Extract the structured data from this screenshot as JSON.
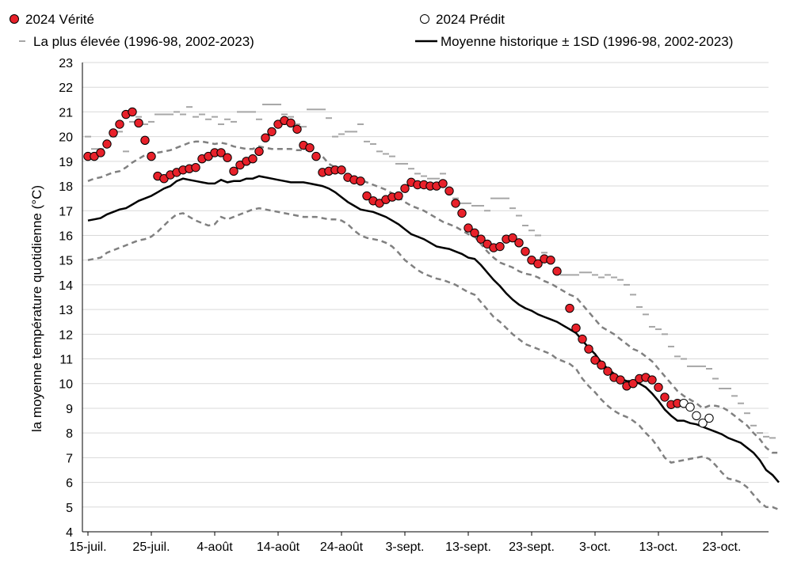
{
  "chart_data": {
    "type": "line",
    "xlabel": "",
    "ylabel": "la moyenne température quotidienne (°C)",
    "ylim": [
      4,
      23
    ],
    "yticks": [
      4,
      5,
      6,
      7,
      8,
      9,
      10,
      11,
      12,
      13,
      14,
      15,
      16,
      17,
      18,
      19,
      20,
      21,
      22,
      23
    ],
    "xrange": [
      "2024-07-15",
      "2024-10-31"
    ],
    "xticks": [
      {
        "date": "2024-07-15",
        "label": "15-juil."
      },
      {
        "date": "2024-07-25",
        "label": "25-juil."
      },
      {
        "date": "2024-08-04",
        "label": "4-août"
      },
      {
        "date": "2024-08-14",
        "label": "14-août"
      },
      {
        "date": "2024-08-24",
        "label": "24-août"
      },
      {
        "date": "2024-09-03",
        "label": "3-sept."
      },
      {
        "date": "2024-09-13",
        "label": "13-sept."
      },
      {
        "date": "2024-09-23",
        "label": "23-sept."
      },
      {
        "date": "2024-10-03",
        "label": "3-oct."
      },
      {
        "date": "2024-10-13",
        "label": "13-oct."
      },
      {
        "date": "2024-10-23",
        "label": "23-oct."
      }
    ],
    "grid": "horizontal",
    "legend": [
      {
        "label": "2024 Vérité",
        "marker": "filled-circle",
        "color": "#e8212a",
        "position": "top-left"
      },
      {
        "label": "2024 Prédit",
        "marker": "open-circle",
        "color": "#ffffff",
        "position": "top-right"
      },
      {
        "label": "La plus élevée (1996-98, 2002-2023)",
        "marker": "dash",
        "color": "#a6a6a6",
        "position": "top-left"
      },
      {
        "label": "Moyenne historique ± 1SD (1996-98, 2002-2023)",
        "marker": "line",
        "color": "#000000",
        "position": "top-right"
      }
    ],
    "series": [
      {
        "name": "2024 Vérité",
        "style": "filled-circle",
        "color": "#e8212a",
        "x_start": "2024-07-15",
        "values": [
          19.2,
          19.2,
          19.35,
          19.7,
          20.15,
          20.5,
          20.9,
          21.0,
          20.55,
          19.85,
          19.2,
          18.4,
          18.3,
          18.45,
          18.55,
          18.65,
          18.7,
          18.75,
          19.1,
          19.2,
          19.35,
          19.35,
          19.15,
          18.6,
          18.85,
          19.0,
          19.1,
          19.4,
          19.95,
          20.2,
          20.5,
          20.65,
          20.55,
          20.3,
          19.65,
          19.55,
          19.2,
          18.55,
          18.6,
          18.65,
          18.65,
          18.35,
          18.25,
          18.2,
          17.6,
          17.4,
          17.3,
          17.45,
          17.55,
          17.6,
          17.9,
          18.15,
          18.05,
          18.05,
          18.0,
          18.0,
          18.1,
          17.8,
          17.3,
          16.9,
          16.3,
          16.1,
          15.85,
          15.65,
          15.5,
          15.55,
          15.85,
          15.9,
          15.7,
          15.35,
          15.0,
          14.85,
          15.05,
          15.0,
          14.55,
          null,
          13.05,
          12.25,
          11.8,
          11.4,
          10.95,
          10.75,
          10.5,
          10.25,
          10.15,
          9.9,
          10.0,
          10.2,
          10.25,
          10.15,
          9.85,
          9.45,
          9.15,
          9.2
        ]
      },
      {
        "name": "2024 Prédit",
        "style": "open-circle",
        "color": "#ffffff",
        "x_start": "2024-10-17",
        "values": [
          9.2,
          9.05,
          8.7,
          8.4,
          8.6
        ]
      },
      {
        "name": "La plus élevée (1996-98, 2002-2023)",
        "style": "dash",
        "color": "#a6a6a6",
        "x_start": "2024-07-15",
        "values": [
          20.0,
          19.5,
          19.5,
          19.6,
          20.0,
          20.2,
          19.4,
          20.6,
          20.8,
          20.5,
          20.6,
          20.9,
          20.9,
          20.9,
          21.0,
          20.9,
          21.2,
          20.8,
          20.9,
          20.7,
          20.8,
          20.5,
          20.7,
          20.6,
          21.0,
          21.0,
          21.0,
          20.7,
          21.3,
          21.3,
          21.3,
          20.9,
          20.8,
          20.5,
          20.4,
          21.1,
          21.1,
          21.1,
          20.75,
          20.0,
          20.1,
          20.2,
          20.2,
          20.5,
          19.8,
          19.7,
          19.4,
          19.3,
          19.2,
          18.9,
          18.9,
          18.7,
          18.5,
          18.4,
          18.3,
          18.3,
          18.5,
          17.8,
          17.5,
          17.3,
          17.3,
          17.2,
          17.2,
          17.0,
          17.5,
          17.5,
          17.5,
          17.1,
          16.8,
          16.4,
          16.2,
          16.0,
          15.3,
          15.0,
          14.6,
          14.4,
          14.4,
          14.4,
          14.5,
          14.5,
          14.4,
          14.3,
          14.4,
          14.3,
          14.2,
          14.0,
          13.6,
          13.1,
          12.8,
          12.3,
          12.2,
          12.0,
          11.5,
          11.1,
          11.0,
          10.7,
          10.7,
          10.7,
          10.6,
          10.2,
          9.8,
          9.8,
          9.5,
          9.2,
          8.8,
          8.3,
          8.0,
          7.85,
          7.8
        ]
      },
      {
        "name": "Moyenne historique ± 1SD (1996-98, 2002-2023)",
        "style": "line",
        "color": "#000000",
        "x_start": "2024-07-15",
        "values": [
          16.6,
          16.65,
          16.7,
          16.85,
          16.95,
          17.05,
          17.1,
          17.25,
          17.4,
          17.5,
          17.6,
          17.75,
          17.9,
          18.0,
          18.2,
          18.3,
          18.25,
          18.2,
          18.15,
          18.1,
          18.1,
          18.25,
          18.15,
          18.2,
          18.2,
          18.3,
          18.3,
          18.4,
          18.35,
          18.3,
          18.25,
          18.2,
          18.15,
          18.15,
          18.15,
          18.1,
          18.05,
          18.0,
          17.9,
          17.75,
          17.55,
          17.35,
          17.2,
          17.05,
          17.0,
          16.95,
          16.85,
          16.75,
          16.6,
          16.45,
          16.25,
          16.05,
          15.95,
          15.85,
          15.7,
          15.55,
          15.5,
          15.45,
          15.35,
          15.25,
          15.1,
          15.05,
          14.8,
          14.5,
          14.2,
          13.95,
          13.65,
          13.4,
          13.2,
          13.05,
          12.95,
          12.8,
          12.7,
          12.6,
          12.5,
          12.35,
          12.2,
          12.05,
          11.75,
          11.45,
          11.2,
          10.85,
          10.6,
          10.4,
          10.2,
          10.1,
          10.1,
          10.0,
          9.85,
          9.6,
          9.3,
          8.95,
          8.7,
          8.5,
          8.5,
          8.4,
          8.35,
          8.25,
          8.15,
          8.05,
          7.95,
          7.8,
          7.7,
          7.6,
          7.4,
          7.2,
          6.9,
          6.5,
          6.3,
          6.0
        ]
      },
      {
        "name": "+1SD",
        "style": "dashed-line",
        "color": "#808080",
        "x_start": "2024-07-15",
        "values": [
          18.2,
          18.3,
          18.35,
          18.45,
          18.55,
          18.6,
          18.75,
          18.95,
          19.1,
          19.25,
          19.35,
          19.35,
          19.4,
          19.45,
          19.55,
          19.65,
          19.75,
          19.8,
          19.8,
          19.75,
          19.7,
          19.75,
          19.7,
          19.6,
          19.55,
          19.5,
          19.5,
          19.6,
          19.55,
          19.5,
          19.5,
          19.5,
          19.5,
          19.45,
          19.45,
          19.45,
          19.3,
          19.2,
          18.9,
          18.75,
          18.6,
          18.45,
          18.35,
          18.25,
          18.15,
          18.05,
          17.95,
          17.85,
          17.7,
          17.55,
          17.35,
          17.2,
          17.1,
          17.0,
          16.85,
          16.7,
          16.55,
          16.45,
          16.35,
          16.2,
          16.05,
          15.95,
          15.65,
          15.35,
          15.1,
          14.9,
          14.8,
          14.7,
          14.55,
          14.45,
          14.4,
          14.3,
          14.15,
          14.05,
          13.9,
          13.75,
          13.6,
          13.5,
          13.2,
          12.9,
          12.6,
          12.3,
          12.15,
          12.0,
          11.8,
          11.6,
          11.4,
          11.3,
          11.1,
          10.9,
          10.6,
          10.3,
          10.0,
          9.7,
          9.5,
          9.35,
          9.2,
          9.0,
          9.1,
          9.1,
          9.05,
          8.9,
          8.7,
          8.5,
          8.3,
          8.0,
          7.75,
          7.4,
          7.2,
          7.2
        ]
      },
      {
        "name": "-1SD",
        "style": "dashed-line",
        "color": "#808080",
        "x_start": "2024-07-15",
        "values": [
          15.0,
          15.05,
          15.1,
          15.3,
          15.4,
          15.5,
          15.6,
          15.7,
          15.8,
          15.85,
          15.95,
          16.15,
          16.4,
          16.65,
          16.85,
          16.9,
          16.75,
          16.6,
          16.5,
          16.4,
          16.45,
          16.75,
          16.65,
          16.75,
          16.85,
          16.95,
          17.05,
          17.1,
          17.05,
          17.0,
          16.95,
          16.9,
          16.85,
          16.8,
          16.75,
          16.75,
          16.75,
          16.7,
          16.65,
          16.65,
          16.6,
          16.45,
          16.2,
          16.0,
          15.9,
          15.85,
          15.8,
          15.7,
          15.55,
          15.3,
          15.0,
          14.8,
          14.6,
          14.45,
          14.35,
          14.25,
          14.2,
          14.1,
          14.0,
          13.85,
          13.7,
          13.6,
          13.3,
          13.0,
          12.7,
          12.5,
          12.25,
          12.0,
          11.8,
          11.6,
          11.5,
          11.4,
          11.3,
          11.2,
          11.0,
          10.9,
          10.8,
          10.6,
          10.2,
          9.9,
          9.65,
          9.35,
          9.1,
          8.9,
          8.75,
          8.65,
          8.5,
          8.3,
          8.0,
          7.75,
          7.4,
          7.0,
          6.8,
          6.85,
          6.9,
          6.95,
          7.0,
          7.05,
          6.95,
          6.7,
          6.4,
          6.15,
          6.1,
          6.0,
          5.8,
          5.5,
          5.2,
          5.0,
          5.0,
          4.9
        ]
      }
    ]
  }
}
